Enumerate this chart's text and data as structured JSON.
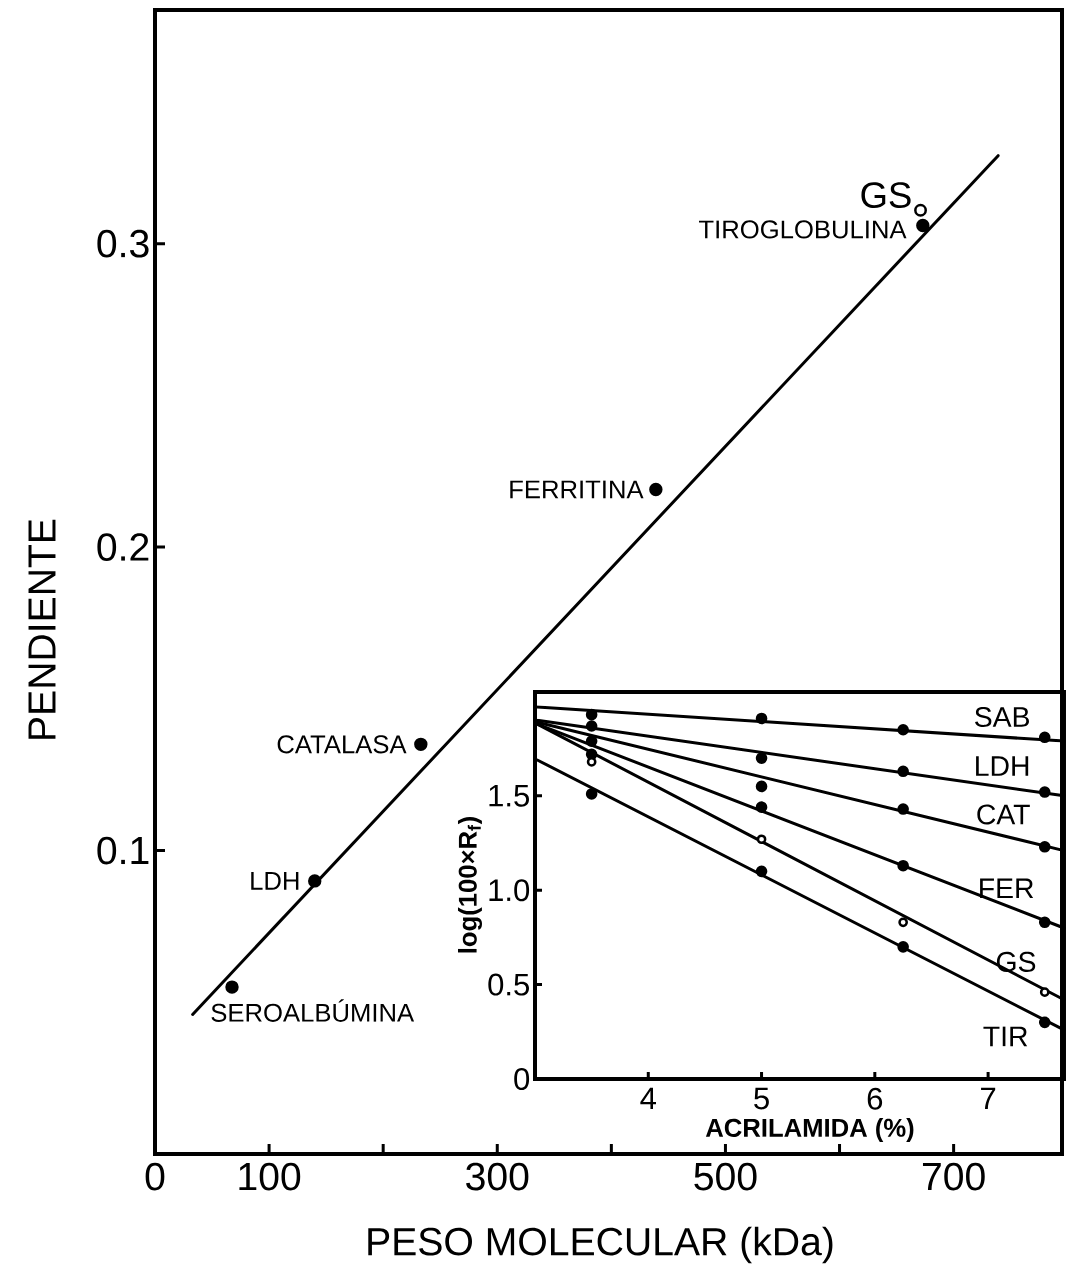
{
  "chart_data": [
    {
      "type": "scatter",
      "xlabel": "PESO MOLECULAR (kDa)",
      "ylabel": "PENDIENTE",
      "xlim": [
        0,
        795
      ],
      "ylim": [
        0,
        0.377
      ],
      "xticks": [
        0,
        100,
        {
          "value": 200,
          "label": null
        },
        300,
        {
          "value": 400,
          "label": null
        },
        500,
        {
          "value": 600,
          "label": null
        },
        700
      ],
      "yticks": [
        0.1,
        0.2,
        0.3
      ],
      "series": [
        {
          "color": "#000000",
          "marker": "circle",
          "x": [
            67.5,
            140,
            233,
            439,
            673
          ],
          "values": [
            0.055,
            0.09,
            0.135,
            0.219,
            0.306
          ]
        },
        {
          "name": "GS",
          "color": "#ffffff",
          "marker": "circle",
          "x": [
            671
          ],
          "values": [
            0.311
          ]
        },
        {
          "type": "line",
          "color": "#000000",
          "marker": "none",
          "line_style": "solid",
          "x": [
            33,
            739
          ],
          "values": [
            0.046,
            0.329
          ]
        }
      ],
      "annotations": [
        {
          "text": "SEROALBÚMINA",
          "x": 67.5,
          "y": 0.055
        },
        {
          "text": "LDH",
          "x": 140,
          "y": 0.09
        },
        {
          "text": "CATALASA",
          "x": 233,
          "y": 0.135
        },
        {
          "text": "FERRITINA",
          "x": 439,
          "y": 0.219
        },
        {
          "text": "TIROGLOBULINA",
          "x": 673,
          "y": 0.306
        }
      ]
    },
    {
      "type": "scatter",
      "xlabel": "ACRILAMIDA (%)",
      "ylabel": "log(100×R$_{f}$)",
      "xlim": [
        3.0,
        7.67
      ],
      "ylim": [
        0,
        2.05
      ],
      "xticks": [
        4,
        5,
        6,
        7
      ],
      "yticks": [
        0,
        0.5,
        {
          "value": 1,
          "label": "1.0"
        },
        1.5
      ],
      "series": [
        {
          "name": "SAB",
          "color": "#000000",
          "marker": "circle",
          "x": [
            3.5,
            5,
            6.25,
            7.5
          ],
          "values": [
            1.93,
            1.91,
            1.85,
            1.81
          ]
        },
        {
          "name": "LDH",
          "color": "#000000",
          "marker": "circle",
          "x": [
            3.5,
            5,
            6.25,
            7.5
          ],
          "values": [
            1.87,
            1.7,
            1.63,
            1.52
          ]
        },
        {
          "name": "CAT",
          "color": "#000000",
          "marker": "circle",
          "x": [
            3.5,
            5,
            6.25,
            7.5
          ],
          "values": [
            1.79,
            1.55,
            1.43,
            1.23
          ]
        },
        {
          "name": "FER",
          "color": "#000000",
          "marker": "circle",
          "x": [
            3.5,
            5,
            6.25,
            7.5
          ],
          "values": [
            1.72,
            1.44,
            1.13,
            0.83
          ]
        },
        {
          "name": "GS",
          "color": "#ffffff",
          "marker": "circle",
          "x": [
            3.5,
            5,
            6.25,
            7.5
          ],
          "values": [
            1.68,
            1.27,
            0.83,
            0.46
          ]
        },
        {
          "name": "TIR",
          "color": "#000000",
          "marker": "circle",
          "x": [
            3.5,
            5,
            6.25,
            7.5
          ],
          "values": [
            1.51,
            1.1,
            0.7,
            0.3
          ]
        },
        {
          "type": "line",
          "color": "#000000",
          "marker": "none",
          "x": [
            3.02,
            7.67
          ],
          "values": [
            1.97,
            1.79
          ]
        },
        {
          "type": "line",
          "color": "#000000",
          "marker": "none",
          "x": [
            3.02,
            7.67
          ],
          "values": [
            1.9,
            1.5
          ]
        },
        {
          "type": "line",
          "color": "#000000",
          "marker": "none",
          "x": [
            3.02,
            7.67
          ],
          "values": [
            1.89,
            1.21
          ]
        },
        {
          "type": "line",
          "color": "#000000",
          "marker": "none",
          "x": [
            3.02,
            7.67
          ],
          "values": [
            1.88,
            0.8
          ]
        },
        {
          "type": "line",
          "color": "#000000",
          "marker": "none",
          "x": [
            3.02,
            7.67
          ],
          "values": [
            1.88,
            0.42
          ]
        },
        {
          "type": "line",
          "color": "#000000",
          "marker": "none",
          "x": [
            3.02,
            7.67
          ],
          "values": [
            1.69,
            0.26
          ]
        }
      ]
    }
  ]
}
